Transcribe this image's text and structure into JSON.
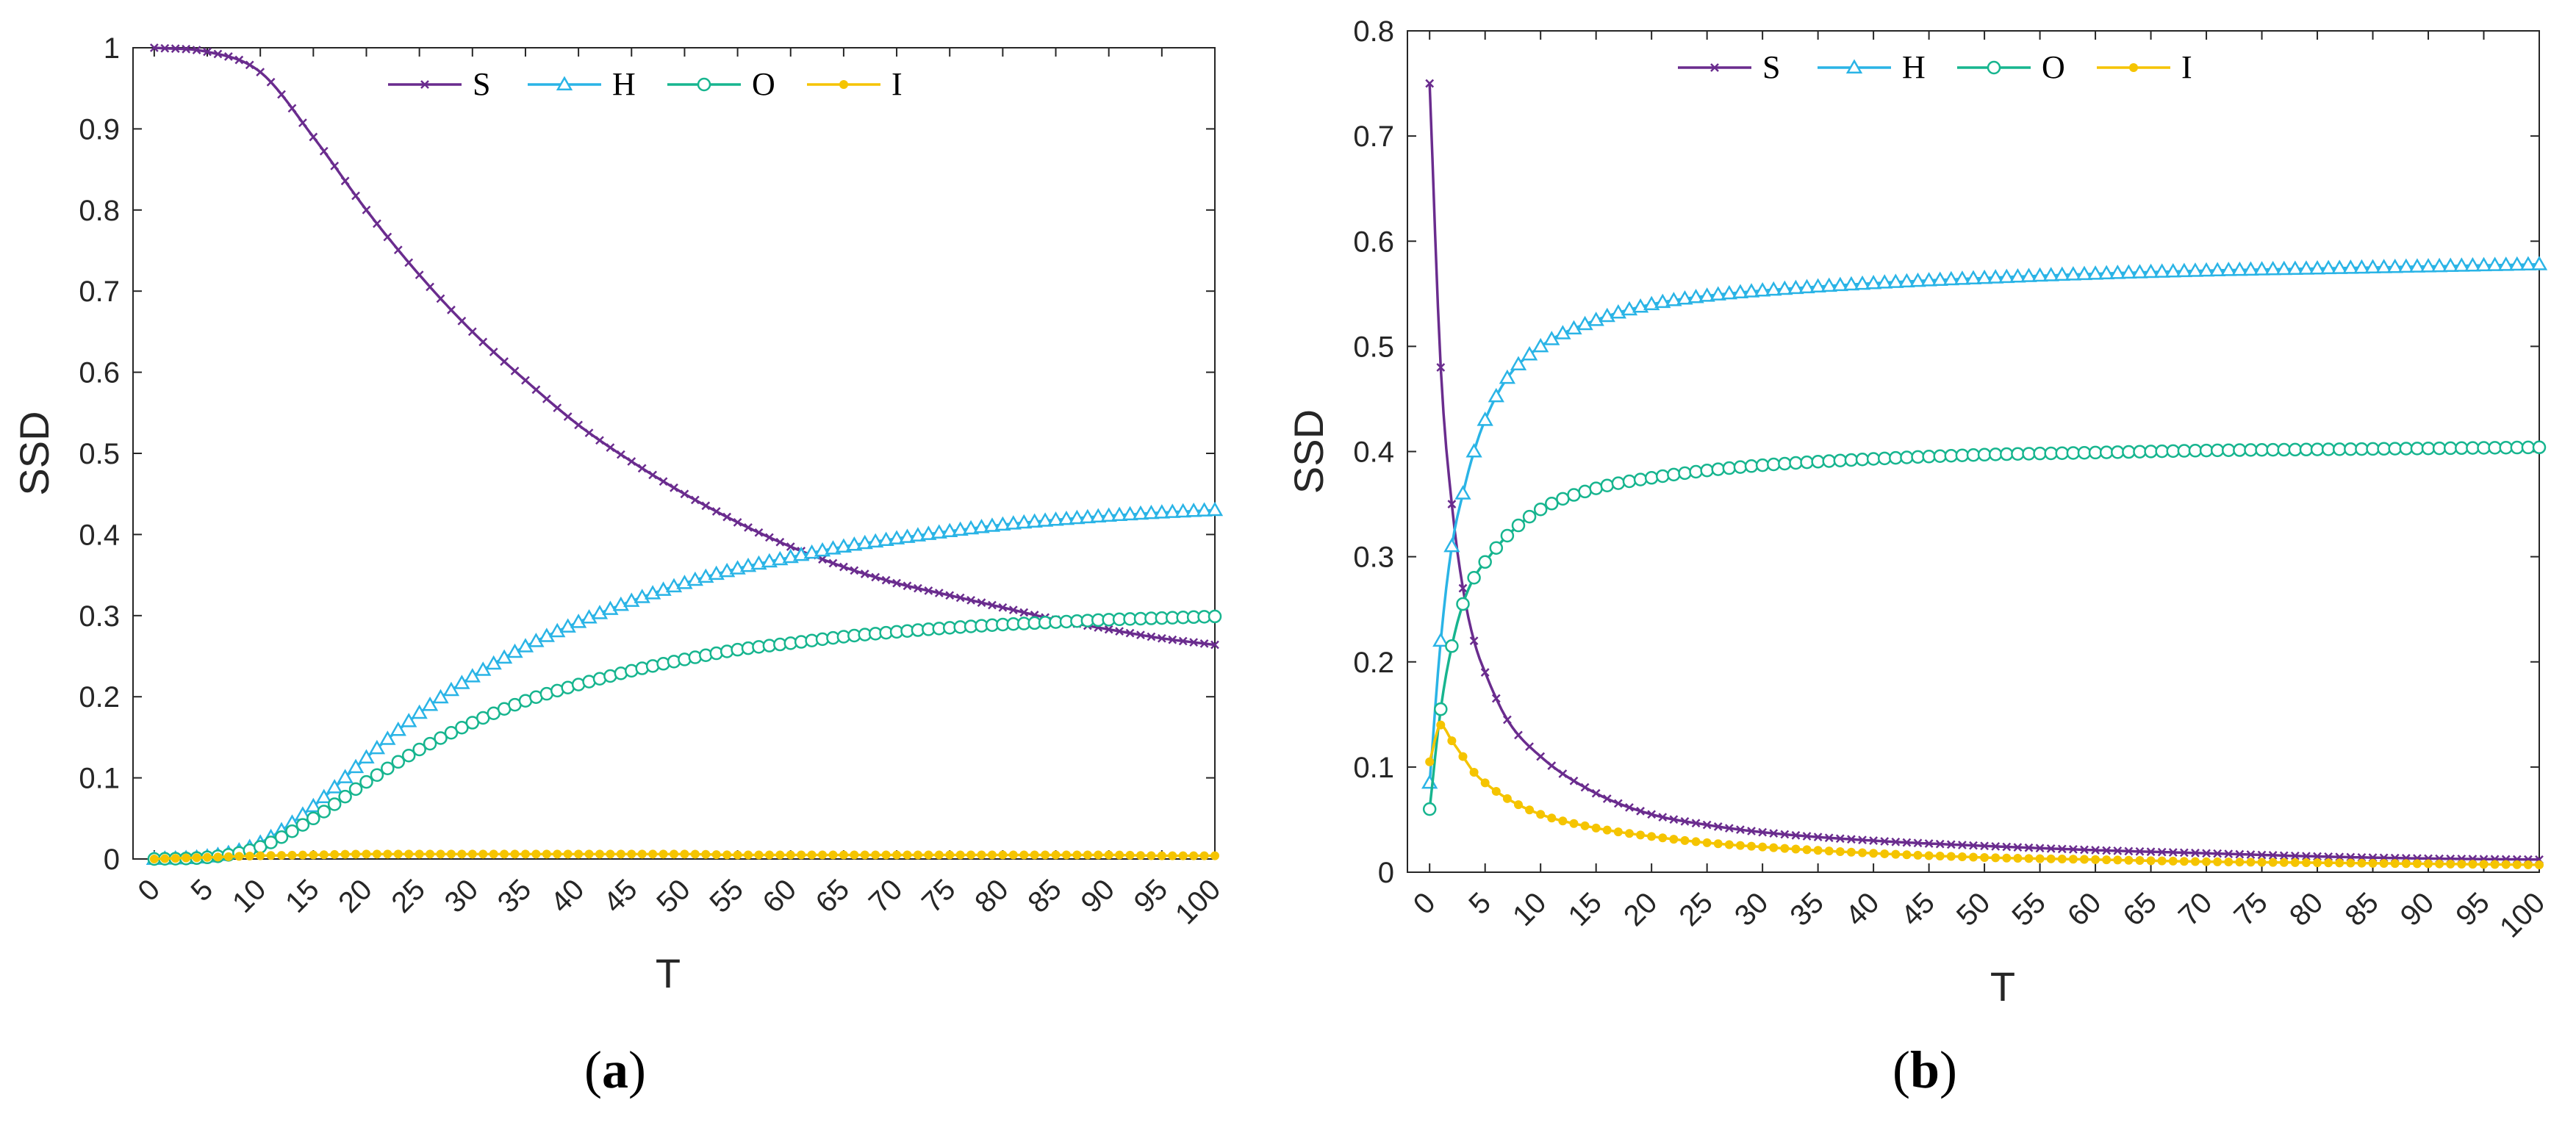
{
  "panel_labels": [
    "(a)",
    "(b)"
  ],
  "colors": {
    "S": "#6a2c8e",
    "H": "#2ab4e6",
    "O": "#17b58f",
    "I": "#f5c400",
    "axis": "#262626"
  },
  "chart_data": [
    {
      "type": "line",
      "panel": "a",
      "xlabel": "T",
      "ylabel": "SSD",
      "xlim": [
        -2,
        100
      ],
      "ylim": [
        0,
        1
      ],
      "xticks": [
        0,
        5,
        10,
        15,
        20,
        25,
        30,
        35,
        40,
        45,
        50,
        55,
        60,
        65,
        70,
        75,
        80,
        85,
        90,
        95,
        100
      ],
      "yticks": [
        0,
        0.1,
        0.2,
        0.3,
        0.4,
        0.5,
        0.6,
        0.7,
        0.8,
        0.9,
        1
      ],
      "ytick_labels": [
        "0",
        "0.1",
        "0.2",
        "0.3",
        "0.4",
        "0.5",
        "0.6",
        "0.7",
        "0.8",
        "0.9",
        "1"
      ],
      "legend_position": "top",
      "grid": false,
      "series": [
        {
          "name": "S",
          "marker": "x",
          "x": [
            0,
            5,
            10,
            15,
            20,
            25,
            30,
            35,
            40,
            45,
            50,
            55,
            60,
            65,
            70,
            75,
            80,
            85,
            90,
            95,
            100
          ],
          "values": [
            1.0,
            0.995,
            0.97,
            0.89,
            0.8,
            0.72,
            0.65,
            0.59,
            0.535,
            0.49,
            0.45,
            0.415,
            0.385,
            0.36,
            0.34,
            0.325,
            0.31,
            0.295,
            0.283,
            0.272,
            0.264
          ]
        },
        {
          "name": "H",
          "marker": "triangle",
          "x": [
            0,
            5,
            10,
            15,
            20,
            25,
            30,
            35,
            40,
            45,
            50,
            55,
            60,
            65,
            70,
            75,
            80,
            85,
            90,
            95,
            100
          ],
          "values": [
            0.0,
            0.003,
            0.02,
            0.065,
            0.125,
            0.18,
            0.225,
            0.262,
            0.292,
            0.318,
            0.34,
            0.358,
            0.372,
            0.385,
            0.395,
            0.404,
            0.412,
            0.418,
            0.423,
            0.427,
            0.43
          ]
        },
        {
          "name": "O",
          "marker": "circle",
          "x": [
            0,
            5,
            10,
            15,
            20,
            25,
            30,
            35,
            40,
            45,
            50,
            55,
            60,
            65,
            70,
            75,
            80,
            85,
            90,
            95,
            100
          ],
          "values": [
            0.0,
            0.002,
            0.015,
            0.05,
            0.095,
            0.135,
            0.168,
            0.195,
            0.215,
            0.232,
            0.246,
            0.258,
            0.266,
            0.274,
            0.28,
            0.285,
            0.289,
            0.292,
            0.295,
            0.297,
            0.299
          ]
        },
        {
          "name": "I",
          "marker": "dot",
          "x": [
            0,
            5,
            10,
            15,
            20,
            25,
            30,
            35,
            40,
            45,
            50,
            55,
            60,
            65,
            70,
            75,
            80,
            85,
            90,
            95,
            100
          ],
          "values": [
            0.0,
            0.002,
            0.004,
            0.005,
            0.006,
            0.006,
            0.006,
            0.006,
            0.006,
            0.006,
            0.006,
            0.005,
            0.005,
            0.005,
            0.005,
            0.005,
            0.005,
            0.005,
            0.005,
            0.004,
            0.004
          ]
        }
      ]
    },
    {
      "type": "line",
      "panel": "b",
      "xlabel": "T",
      "ylabel": "SSD",
      "xlim": [
        -2,
        100
      ],
      "ylim": [
        0,
        0.8
      ],
      "xticks": [
        0,
        5,
        10,
        15,
        20,
        25,
        30,
        35,
        40,
        45,
        50,
        55,
        60,
        65,
        70,
        75,
        80,
        85,
        90,
        95,
        100
      ],
      "yticks": [
        0,
        0.1,
        0.2,
        0.3,
        0.4,
        0.5,
        0.6,
        0.7,
        0.8
      ],
      "ytick_labels": [
        "0",
        "0.1",
        "0.2",
        "0.3",
        "0.4",
        "0.5",
        "0.6",
        "0.7",
        "0.8"
      ],
      "legend_position": "top",
      "grid": false,
      "series": [
        {
          "name": "S",
          "marker": "x",
          "x": [
            0,
            1,
            2,
            3,
            4,
            5,
            7,
            10,
            15,
            20,
            25,
            30,
            40,
            50,
            60,
            70,
            80,
            90,
            100
          ],
          "values": [
            0.75,
            0.48,
            0.35,
            0.27,
            0.22,
            0.19,
            0.145,
            0.11,
            0.075,
            0.055,
            0.045,
            0.038,
            0.03,
            0.025,
            0.021,
            0.018,
            0.015,
            0.013,
            0.012
          ]
        },
        {
          "name": "H",
          "marker": "triangle",
          "x": [
            0,
            1,
            2,
            3,
            4,
            5,
            7,
            10,
            15,
            20,
            25,
            30,
            40,
            50,
            60,
            70,
            80,
            90,
            100
          ],
          "values": [
            0.085,
            0.22,
            0.31,
            0.36,
            0.4,
            0.43,
            0.47,
            0.5,
            0.525,
            0.54,
            0.548,
            0.553,
            0.56,
            0.565,
            0.569,
            0.572,
            0.574,
            0.576,
            0.578
          ]
        },
        {
          "name": "O",
          "marker": "circle",
          "x": [
            0,
            1,
            2,
            3,
            4,
            5,
            7,
            10,
            15,
            20,
            25,
            30,
            40,
            50,
            60,
            70,
            80,
            90,
            100
          ],
          "values": [
            0.06,
            0.155,
            0.215,
            0.255,
            0.28,
            0.295,
            0.32,
            0.345,
            0.365,
            0.375,
            0.382,
            0.387,
            0.393,
            0.397,
            0.399,
            0.401,
            0.402,
            0.403,
            0.404
          ]
        },
        {
          "name": "I",
          "marker": "dot",
          "x": [
            0,
            1,
            2,
            3,
            4,
            5,
            7,
            10,
            15,
            20,
            25,
            30,
            40,
            50,
            60,
            70,
            80,
            90,
            100
          ],
          "values": [
            0.105,
            0.14,
            0.125,
            0.11,
            0.095,
            0.085,
            0.07,
            0.055,
            0.042,
            0.034,
            0.028,
            0.024,
            0.018,
            0.014,
            0.012,
            0.01,
            0.009,
            0.008,
            0.007
          ]
        }
      ]
    }
  ]
}
